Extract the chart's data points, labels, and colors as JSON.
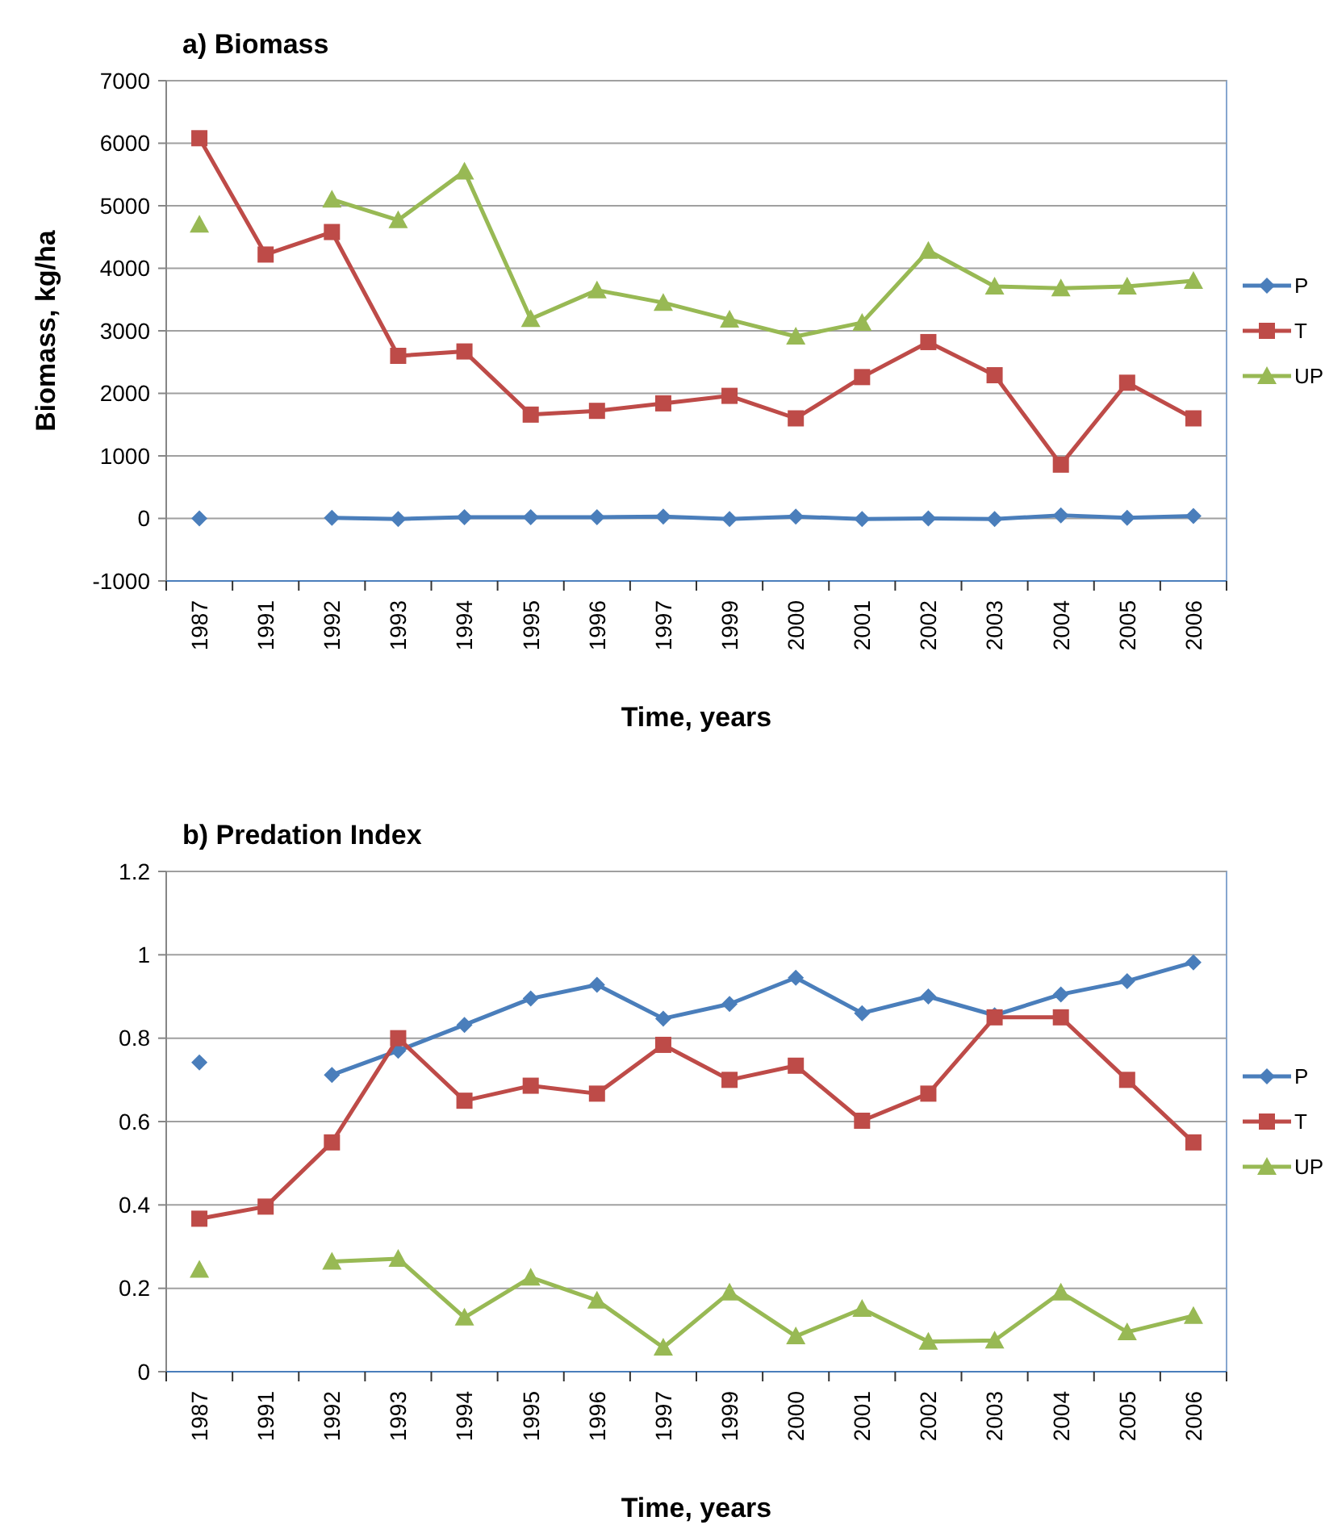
{
  "chart_data": [
    {
      "type": "line",
      "title": "a) Biomass",
      "xlabel": "Time, years",
      "ylabel": "Biomass, kg/ha",
      "categories": [
        "1987",
        "1991",
        "1992",
        "1993",
        "1994",
        "1995",
        "1996",
        "1997",
        "1999",
        "2000",
        "2001",
        "2002",
        "2003",
        "2004",
        "2005",
        "2006"
      ],
      "series": [
        {
          "name": "P",
          "color": "#4a7ebb",
          "marker": "diamond",
          "values": [
            0,
            null,
            10,
            -10,
            20,
            20,
            20,
            30,
            -10,
            30,
            -10,
            0,
            -10,
            50,
            10,
            40
          ]
        },
        {
          "name": "T",
          "color": "#be4b48",
          "marker": "square",
          "values": [
            6080,
            4220,
            4580,
            2600,
            2670,
            1660,
            1720,
            1840,
            1960,
            1600,
            2260,
            2820,
            2290,
            860,
            2170,
            1600
          ]
        },
        {
          "name": "UP",
          "color": "#98b954",
          "marker": "triangle",
          "values": [
            4700,
            null,
            5100,
            4770,
            5550,
            3190,
            3650,
            3450,
            3180,
            2910,
            3130,
            4280,
            3710,
            3680,
            3710,
            3800
          ]
        }
      ],
      "ylim": [
        -1000,
        7000
      ],
      "yticks": [
        -1000,
        0,
        1000,
        2000,
        3000,
        4000,
        5000,
        6000,
        7000
      ],
      "grid": "y",
      "legend": "right"
    },
    {
      "type": "line",
      "title": "b) Predation Index",
      "xlabel": "Time, years",
      "categories": [
        "1987",
        "1991",
        "1992",
        "1993",
        "1994",
        "1995",
        "1996",
        "1997",
        "1999",
        "2000",
        "2001",
        "2002",
        "2003",
        "2004",
        "2005",
        "2006"
      ],
      "series": [
        {
          "name": "P",
          "color": "#4a7ebb",
          "marker": "diamond",
          "values": [
            0.742,
            null,
            0.712,
            0.77,
            0.832,
            0.895,
            0.928,
            0.847,
            0.882,
            0.945,
            0.86,
            0.9,
            0.855,
            0.905,
            0.937,
            0.982
          ]
        },
        {
          "name": "T",
          "color": "#be4b48",
          "marker": "square",
          "values": [
            0.367,
            0.396,
            0.55,
            0.8,
            0.65,
            0.686,
            0.667,
            0.784,
            0.7,
            0.734,
            0.602,
            0.667,
            0.85,
            0.85,
            0.7,
            0.55
          ]
        },
        {
          "name": "UP",
          "color": "#98b954",
          "marker": "triangle",
          "values": [
            0.245,
            null,
            0.264,
            0.271,
            0.13,
            0.226,
            0.171,
            0.058,
            0.19,
            0.085,
            0.151,
            0.072,
            0.075,
            0.19,
            0.095,
            0.134
          ]
        }
      ],
      "ylim": [
        0,
        1.2
      ],
      "yticks": [
        0,
        0.2,
        0.4,
        0.6,
        0.8,
        1,
        1.2
      ],
      "grid": "y",
      "legend": "right"
    }
  ]
}
